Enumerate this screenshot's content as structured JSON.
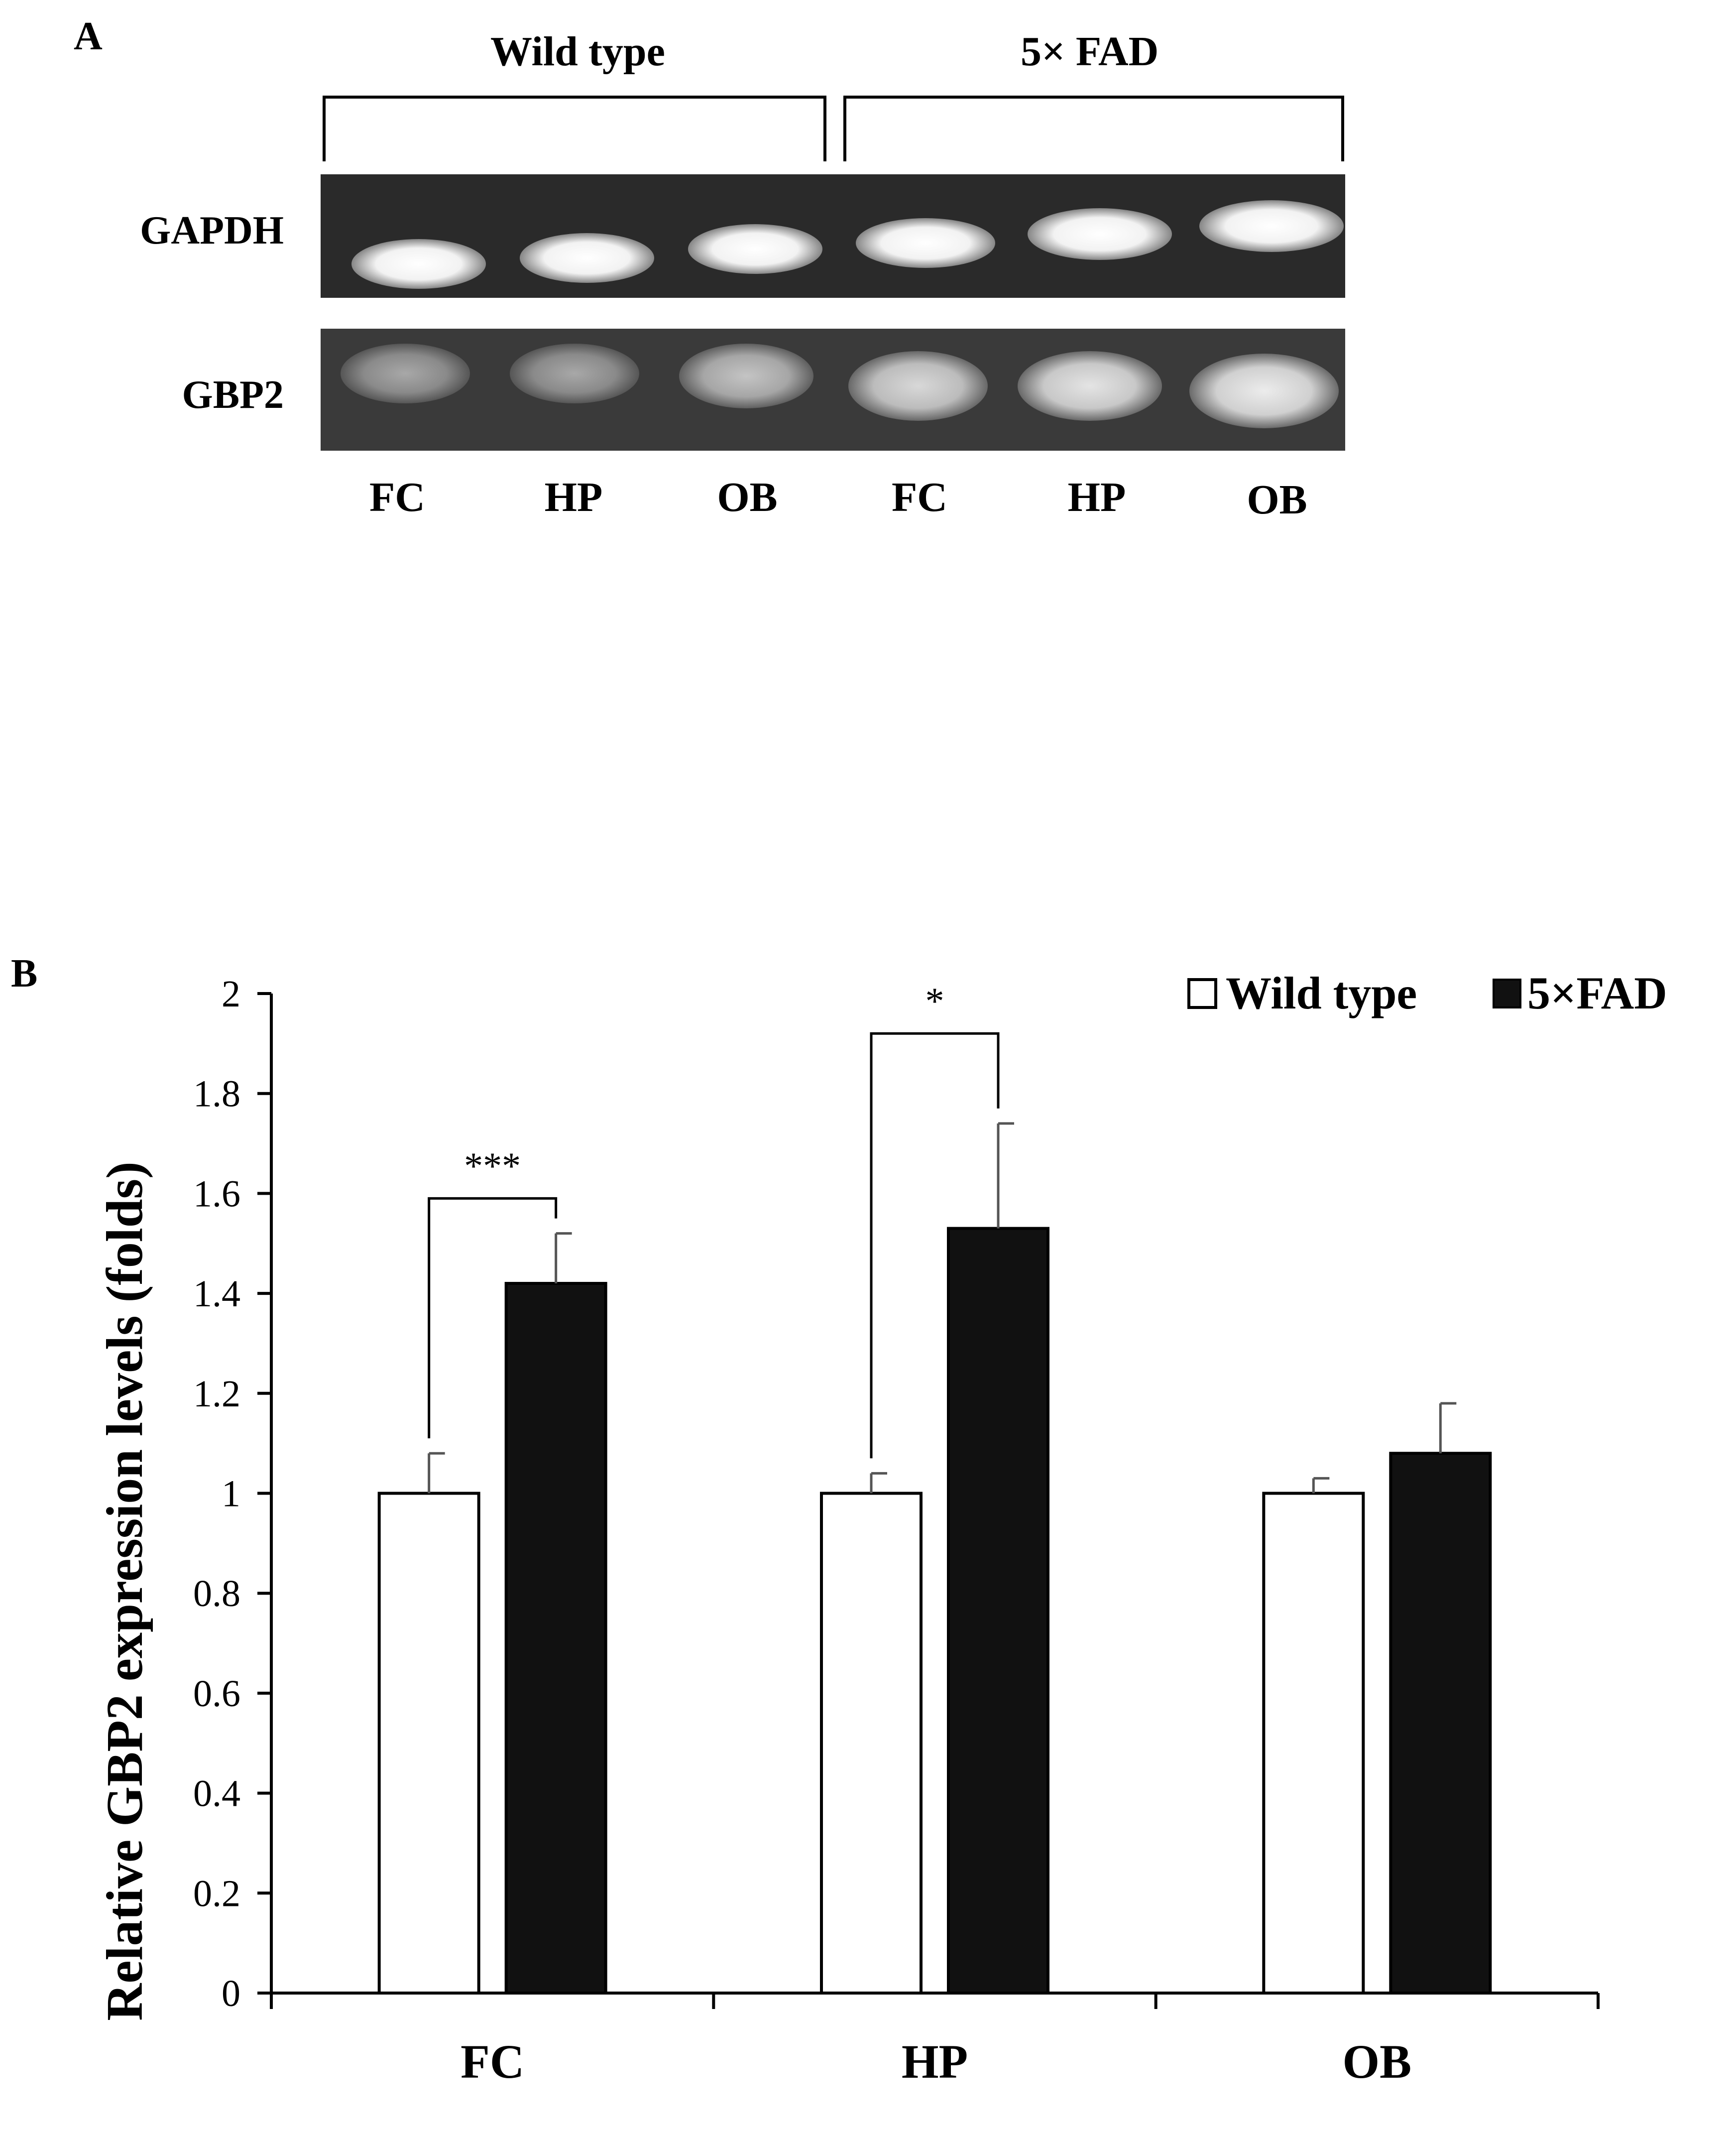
{
  "panel_a": {
    "letter": "A",
    "groups": [
      "Wild type",
      "5× FAD"
    ],
    "rows": [
      "GAPDH",
      "GBP2"
    ],
    "lanes": [
      "FC",
      "HP",
      "OB",
      "FC",
      "HP",
      "OB"
    ]
  },
  "panel_b": {
    "letter": "B"
  },
  "chart_data": {
    "type": "bar",
    "title": "",
    "ylabel": "Relative GBP2 expression levels (folds)",
    "xlabel": "",
    "categories": [
      "FC",
      "HP",
      "OB"
    ],
    "ylim": [
      0,
      2
    ],
    "yticks": [
      0,
      0.2,
      0.4,
      0.6,
      0.8,
      1,
      1.2,
      1.4,
      1.6,
      1.8,
      2
    ],
    "ytick_labels": [
      "0",
      "0.2",
      "0.4",
      "0.6",
      "0.8",
      "1",
      "1.2",
      "1.4",
      "1.6",
      "1.8",
      "2"
    ],
    "legend_position": "top-right",
    "series": [
      {
        "name": "Wild type",
        "legend_label": "Wild type",
        "color": "#ffffff",
        "values": [
          1.0,
          1.0,
          1.0
        ],
        "errors": [
          0.08,
          0.04,
          0.03
        ]
      },
      {
        "name": "5×FAD",
        "legend_label": "5×FAD",
        "color": "#111111",
        "values": [
          1.42,
          1.53,
          1.08
        ],
        "errors": [
          0.1,
          0.21,
          0.1
        ]
      }
    ],
    "significance": [
      {
        "category": "FC",
        "label": "***",
        "bracket_y": 1.59
      },
      {
        "category": "HP",
        "label": "*",
        "bracket_y": 1.92
      }
    ]
  }
}
